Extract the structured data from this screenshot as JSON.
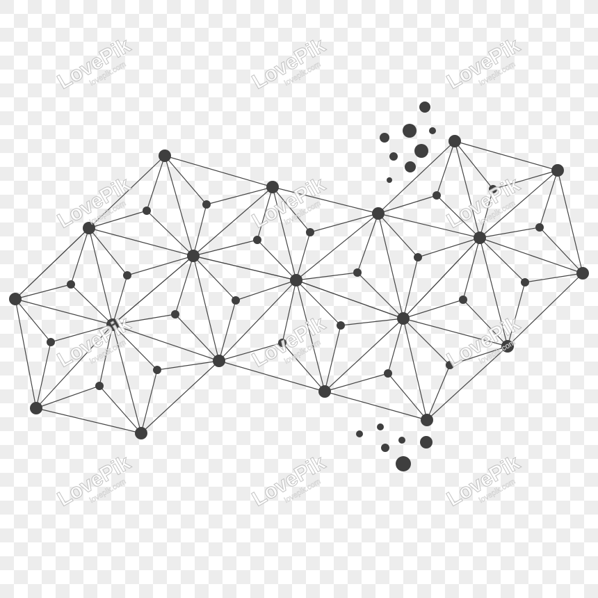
{
  "watermark": {
    "brand": "LovePik",
    "site": "lovepik.com"
  }
}
